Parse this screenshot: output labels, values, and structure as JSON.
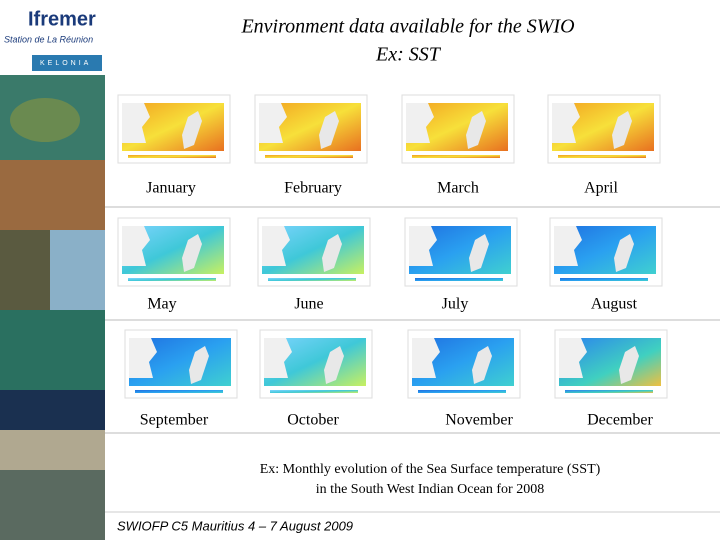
{
  "logo": {
    "name": "Ifremer",
    "station": "Station de La Réunion",
    "partner": "KELONIA"
  },
  "title": {
    "line1": "Environment data available for the SWIO",
    "line2": "Ex: SST"
  },
  "months": [
    "January",
    "February",
    "March",
    "April",
    "May",
    "June",
    "July",
    "August",
    "September",
    "October",
    "November",
    "December"
  ],
  "caption": {
    "line1": "Ex: Monthly evolution of the Sea Surface temperature (SST)",
    "line2": "in the South West Indian Ocean for 2008"
  },
  "footer": "SWIOFP C5 Mauritius 4 – 7 August 2009"
}
